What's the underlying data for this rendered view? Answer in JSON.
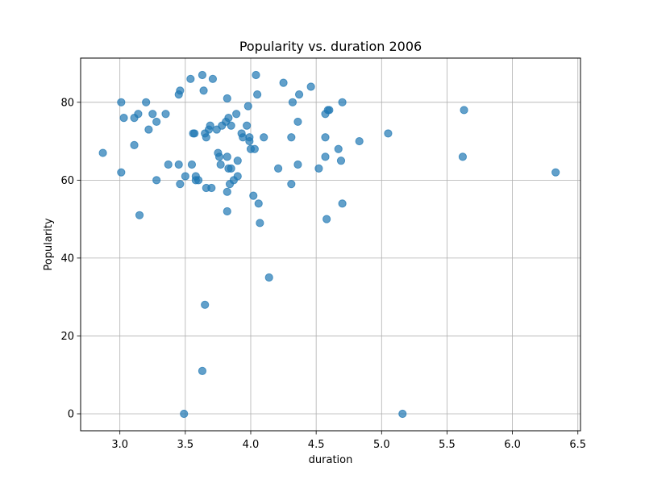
{
  "chart_data": {
    "type": "scatter",
    "title": "Popularity vs. duration 2006",
    "xlabel": "duration",
    "ylabel": "Popularity",
    "xlim": [
      2.7,
      6.52
    ],
    "ylim": [
      -4.35,
      91.35
    ],
    "xticks": [
      3.0,
      3.5,
      4.0,
      4.5,
      5.0,
      5.5,
      6.0,
      6.5
    ],
    "xtick_labels": [
      "3.0",
      "3.5",
      "4.0",
      "4.5",
      "5.0",
      "5.5",
      "6.0",
      "6.5"
    ],
    "yticks": [
      0,
      20,
      40,
      60,
      80
    ],
    "ytick_labels": [
      "0",
      "20",
      "40",
      "60",
      "80"
    ],
    "grid": true,
    "point_color": "#1f77b4",
    "point_alpha": 0.7,
    "points": [
      {
        "x": 2.87,
        "y": 67
      },
      {
        "x": 3.01,
        "y": 80
      },
      {
        "x": 3.01,
        "y": 62
      },
      {
        "x": 3.03,
        "y": 76
      },
      {
        "x": 3.11,
        "y": 76
      },
      {
        "x": 3.11,
        "y": 69
      },
      {
        "x": 3.14,
        "y": 77
      },
      {
        "x": 3.15,
        "y": 51
      },
      {
        "x": 3.2,
        "y": 80
      },
      {
        "x": 3.22,
        "y": 73
      },
      {
        "x": 3.25,
        "y": 77
      },
      {
        "x": 3.28,
        "y": 75
      },
      {
        "x": 3.28,
        "y": 60
      },
      {
        "x": 3.35,
        "y": 77
      },
      {
        "x": 3.37,
        "y": 64
      },
      {
        "x": 3.45,
        "y": 82
      },
      {
        "x": 3.46,
        "y": 83
      },
      {
        "x": 3.45,
        "y": 64
      },
      {
        "x": 3.46,
        "y": 59
      },
      {
        "x": 3.49,
        "y": 0
      },
      {
        "x": 3.5,
        "y": 61
      },
      {
        "x": 3.54,
        "y": 86
      },
      {
        "x": 3.55,
        "y": 64
      },
      {
        "x": 3.56,
        "y": 72
      },
      {
        "x": 3.57,
        "y": 72
      },
      {
        "x": 3.58,
        "y": 61
      },
      {
        "x": 3.58,
        "y": 60
      },
      {
        "x": 3.6,
        "y": 60
      },
      {
        "x": 3.63,
        "y": 87
      },
      {
        "x": 3.64,
        "y": 83
      },
      {
        "x": 3.63,
        "y": 11
      },
      {
        "x": 3.65,
        "y": 28
      },
      {
        "x": 3.65,
        "y": 72
      },
      {
        "x": 3.66,
        "y": 71
      },
      {
        "x": 3.66,
        "y": 58
      },
      {
        "x": 3.68,
        "y": 73
      },
      {
        "x": 3.69,
        "y": 74
      },
      {
        "x": 3.7,
        "y": 58
      },
      {
        "x": 3.71,
        "y": 86
      },
      {
        "x": 3.74,
        "y": 73
      },
      {
        "x": 3.75,
        "y": 67
      },
      {
        "x": 3.76,
        "y": 66
      },
      {
        "x": 3.77,
        "y": 64
      },
      {
        "x": 3.78,
        "y": 74
      },
      {
        "x": 3.81,
        "y": 75
      },
      {
        "x": 3.82,
        "y": 81
      },
      {
        "x": 3.82,
        "y": 66
      },
      {
        "x": 3.82,
        "y": 57
      },
      {
        "x": 3.82,
        "y": 52
      },
      {
        "x": 3.83,
        "y": 76
      },
      {
        "x": 3.83,
        "y": 63
      },
      {
        "x": 3.84,
        "y": 59
      },
      {
        "x": 3.85,
        "y": 74
      },
      {
        "x": 3.85,
        "y": 63
      },
      {
        "x": 3.87,
        "y": 60
      },
      {
        "x": 3.89,
        "y": 77
      },
      {
        "x": 3.9,
        "y": 65
      },
      {
        "x": 3.9,
        "y": 61
      },
      {
        "x": 3.93,
        "y": 72
      },
      {
        "x": 3.94,
        "y": 71
      },
      {
        "x": 3.97,
        "y": 74
      },
      {
        "x": 3.98,
        "y": 79
      },
      {
        "x": 3.99,
        "y": 71
      },
      {
        "x": 3.99,
        "y": 70
      },
      {
        "x": 4.0,
        "y": 68
      },
      {
        "x": 4.02,
        "y": 56
      },
      {
        "x": 4.03,
        "y": 68
      },
      {
        "x": 4.04,
        "y": 87
      },
      {
        "x": 4.05,
        "y": 82
      },
      {
        "x": 4.06,
        "y": 54
      },
      {
        "x": 4.07,
        "y": 49
      },
      {
        "x": 4.1,
        "y": 71
      },
      {
        "x": 4.14,
        "y": 35
      },
      {
        "x": 4.21,
        "y": 63
      },
      {
        "x": 4.25,
        "y": 85
      },
      {
        "x": 4.31,
        "y": 71
      },
      {
        "x": 4.31,
        "y": 59
      },
      {
        "x": 4.32,
        "y": 80
      },
      {
        "x": 4.36,
        "y": 75
      },
      {
        "x": 4.36,
        "y": 64
      },
      {
        "x": 4.37,
        "y": 82
      },
      {
        "x": 4.46,
        "y": 84
      },
      {
        "x": 4.52,
        "y": 63
      },
      {
        "x": 4.57,
        "y": 77
      },
      {
        "x": 4.57,
        "y": 71
      },
      {
        "x": 4.57,
        "y": 66
      },
      {
        "x": 4.58,
        "y": 50
      },
      {
        "x": 4.59,
        "y": 78
      },
      {
        "x": 4.6,
        "y": 78
      },
      {
        "x": 4.67,
        "y": 68
      },
      {
        "x": 4.69,
        "y": 65
      },
      {
        "x": 4.7,
        "y": 80
      },
      {
        "x": 4.7,
        "y": 54
      },
      {
        "x": 4.83,
        "y": 70
      },
      {
        "x": 5.05,
        "y": 72
      },
      {
        "x": 5.16,
        "y": 0
      },
      {
        "x": 5.62,
        "y": 66
      },
      {
        "x": 5.63,
        "y": 78
      },
      {
        "x": 6.33,
        "y": 62
      }
    ]
  }
}
